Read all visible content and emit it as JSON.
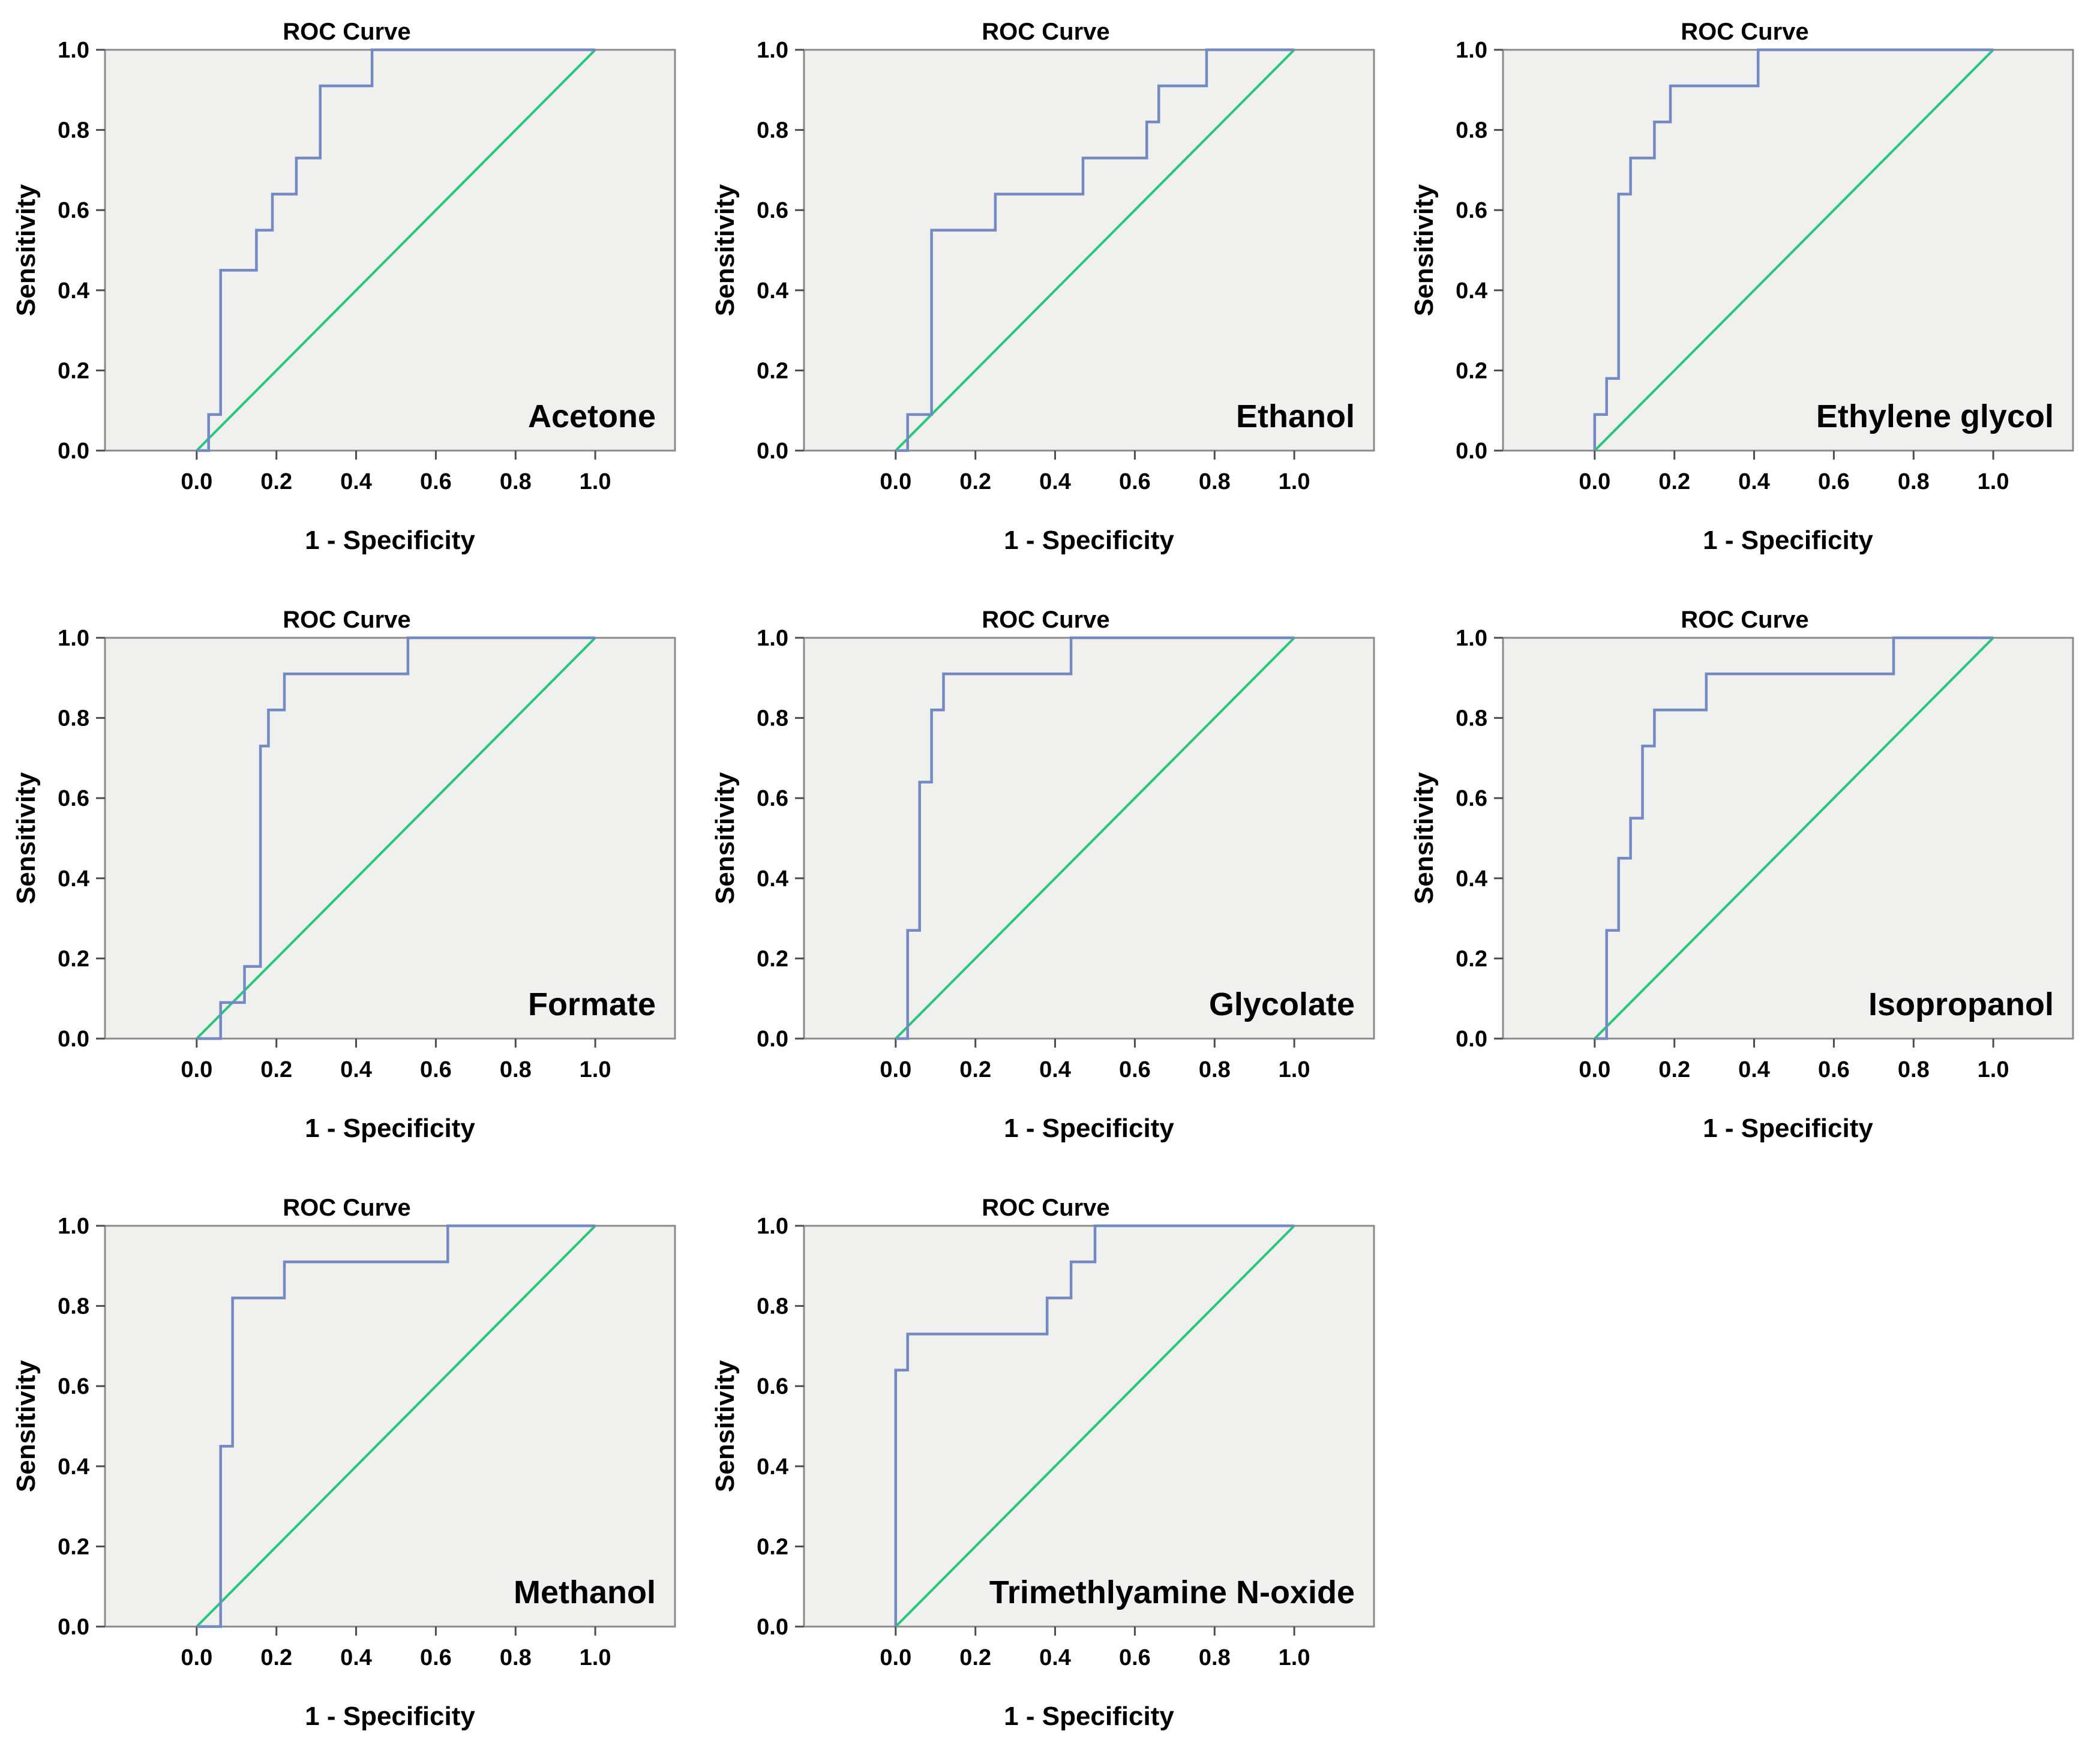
{
  "figure_style": {
    "background": "#ffffff",
    "plot_background": "#f0f0ef",
    "plot_border_color": "#8a8a8a",
    "axis_color": "#4d4d4d",
    "tick_label_color": "#000000",
    "roc_line_color": "#7289c4",
    "reference_line_color": "#25c87a",
    "grid": false,
    "legend": false
  },
  "chart_data": [
    {
      "type": "line",
      "title": "ROC Curve",
      "analyte_label": "Acetone",
      "xlabel": "1 - Specificity",
      "ylabel": "Sensitivity",
      "xlim": [
        0,
        1
      ],
      "ylim": [
        0,
        1
      ],
      "x_ticks": [
        "0.0",
        "0.2",
        "0.4",
        "0.6",
        "0.8",
        "1.0"
      ],
      "y_ticks": [
        "0.0",
        "0.2",
        "0.4",
        "0.6",
        "0.8",
        "1.0"
      ],
      "series": [
        {
          "name": "ROC curve",
          "color": "#7289c4",
          "points": [
            [
              0,
              0
            ],
            [
              0.03,
              0
            ],
            [
              0.03,
              0.09
            ],
            [
              0.06,
              0.09
            ],
            [
              0.06,
              0.45
            ],
            [
              0.15,
              0.45
            ],
            [
              0.15,
              0.55
            ],
            [
              0.19,
              0.55
            ],
            [
              0.19,
              0.64
            ],
            [
              0.25,
              0.64
            ],
            [
              0.25,
              0.73
            ],
            [
              0.31,
              0.73
            ],
            [
              0.31,
              0.91
            ],
            [
              0.44,
              0.91
            ],
            [
              0.44,
              1
            ],
            [
              1,
              1
            ]
          ]
        },
        {
          "name": "Reference line",
          "color": "#25c87a",
          "points": [
            [
              0,
              0
            ],
            [
              1,
              1
            ]
          ]
        }
      ]
    },
    {
      "type": "line",
      "title": "ROC Curve",
      "analyte_label": "Ethanol",
      "xlabel": "1 - Specificity",
      "ylabel": "Sensitivity",
      "xlim": [
        0,
        1
      ],
      "ylim": [
        0,
        1
      ],
      "x_ticks": [
        "0.0",
        "0.2",
        "0.4",
        "0.6",
        "0.8",
        "1.0"
      ],
      "y_ticks": [
        "0.0",
        "0.2",
        "0.4",
        "0.6",
        "0.8",
        "1.0"
      ],
      "series": [
        {
          "name": "ROC curve",
          "color": "#7289c4",
          "points": [
            [
              0,
              0
            ],
            [
              0.03,
              0
            ],
            [
              0.03,
              0.09
            ],
            [
              0.09,
              0.09
            ],
            [
              0.09,
              0.55
            ],
            [
              0.25,
              0.55
            ],
            [
              0.25,
              0.64
            ],
            [
              0.47,
              0.64
            ],
            [
              0.47,
              0.73
            ],
            [
              0.63,
              0.73
            ],
            [
              0.63,
              0.82
            ],
            [
              0.66,
              0.82
            ],
            [
              0.66,
              0.91
            ],
            [
              0.78,
              0.91
            ],
            [
              0.78,
              1
            ],
            [
              1,
              1
            ]
          ]
        },
        {
          "name": "Reference line",
          "color": "#25c87a",
          "points": [
            [
              0,
              0
            ],
            [
              1,
              1
            ]
          ]
        }
      ]
    },
    {
      "type": "line",
      "title": "ROC Curve",
      "analyte_label": "Ethylene glycol",
      "xlabel": "1 - Specificity",
      "ylabel": "Sensitivity",
      "xlim": [
        0,
        1
      ],
      "ylim": [
        0,
        1
      ],
      "x_ticks": [
        "0.0",
        "0.2",
        "0.4",
        "0.6",
        "0.8",
        "1.0"
      ],
      "y_ticks": [
        "0.0",
        "0.2",
        "0.4",
        "0.6",
        "0.8",
        "1.0"
      ],
      "series": [
        {
          "name": "ROC curve",
          "color": "#7289c4",
          "points": [
            [
              0,
              0
            ],
            [
              0,
              0.09
            ],
            [
              0.03,
              0.09
            ],
            [
              0.03,
              0.18
            ],
            [
              0.06,
              0.18
            ],
            [
              0.06,
              0.64
            ],
            [
              0.09,
              0.64
            ],
            [
              0.09,
              0.73
            ],
            [
              0.15,
              0.73
            ],
            [
              0.15,
              0.82
            ],
            [
              0.19,
              0.82
            ],
            [
              0.19,
              0.91
            ],
            [
              0.41,
              0.91
            ],
            [
              0.41,
              1
            ],
            [
              1,
              1
            ]
          ]
        },
        {
          "name": "Reference line",
          "color": "#25c87a",
          "points": [
            [
              0,
              0
            ],
            [
              1,
              1
            ]
          ]
        }
      ]
    },
    {
      "type": "line",
      "title": "ROC Curve",
      "analyte_label": "Formate",
      "xlabel": "1 - Specificity",
      "ylabel": "Sensitivity",
      "xlim": [
        0,
        1
      ],
      "ylim": [
        0,
        1
      ],
      "x_ticks": [
        "0.0",
        "0.2",
        "0.4",
        "0.6",
        "0.8",
        "1.0"
      ],
      "y_ticks": [
        "0.0",
        "0.2",
        "0.4",
        "0.6",
        "0.8",
        "1.0"
      ],
      "series": [
        {
          "name": "ROC curve",
          "color": "#7289c4",
          "points": [
            [
              0,
              0
            ],
            [
              0.06,
              0
            ],
            [
              0.06,
              0.09
            ],
            [
              0.12,
              0.09
            ],
            [
              0.12,
              0.18
            ],
            [
              0.16,
              0.18
            ],
            [
              0.16,
              0.73
            ],
            [
              0.18,
              0.73
            ],
            [
              0.18,
              0.82
            ],
            [
              0.22,
              0.82
            ],
            [
              0.22,
              0.91
            ],
            [
              0.53,
              0.91
            ],
            [
              0.53,
              1
            ],
            [
              1,
              1
            ]
          ]
        },
        {
          "name": "Reference line",
          "color": "#25c87a",
          "points": [
            [
              0,
              0
            ],
            [
              1,
              1
            ]
          ]
        }
      ]
    },
    {
      "type": "line",
      "title": "ROC Curve",
      "analyte_label": "Glycolate",
      "xlabel": "1 - Specificity",
      "ylabel": "Sensitivity",
      "xlim": [
        0,
        1
      ],
      "ylim": [
        0,
        1
      ],
      "x_ticks": [
        "0.0",
        "0.2",
        "0.4",
        "0.6",
        "0.8",
        "1.0"
      ],
      "y_ticks": [
        "0.0",
        "0.2",
        "0.4",
        "0.6",
        "0.8",
        "1.0"
      ],
      "series": [
        {
          "name": "ROC curve",
          "color": "#7289c4",
          "points": [
            [
              0,
              0
            ],
            [
              0.03,
              0
            ],
            [
              0.03,
              0.27
            ],
            [
              0.06,
              0.27
            ],
            [
              0.06,
              0.64
            ],
            [
              0.09,
              0.64
            ],
            [
              0.09,
              0.82
            ],
            [
              0.12,
              0.82
            ],
            [
              0.12,
              0.91
            ],
            [
              0.44,
              0.91
            ],
            [
              0.44,
              1
            ],
            [
              1,
              1
            ]
          ]
        },
        {
          "name": "Reference line",
          "color": "#25c87a",
          "points": [
            [
              0,
              0
            ],
            [
              1,
              1
            ]
          ]
        }
      ]
    },
    {
      "type": "line",
      "title": "ROC Curve",
      "analyte_label": "Isopropanol",
      "xlabel": "1 - Specificity",
      "ylabel": "Sensitivity",
      "xlim": [
        0,
        1
      ],
      "ylim": [
        0,
        1
      ],
      "x_ticks": [
        "0.0",
        "0.2",
        "0.4",
        "0.6",
        "0.8",
        "1.0"
      ],
      "y_ticks": [
        "0.0",
        "0.2",
        "0.4",
        "0.6",
        "0.8",
        "1.0"
      ],
      "series": [
        {
          "name": "ROC curve",
          "color": "#7289c4",
          "points": [
            [
              0,
              0
            ],
            [
              0.03,
              0
            ],
            [
              0.03,
              0.27
            ],
            [
              0.06,
              0.27
            ],
            [
              0.06,
              0.45
            ],
            [
              0.09,
              0.45
            ],
            [
              0.09,
              0.55
            ],
            [
              0.12,
              0.55
            ],
            [
              0.12,
              0.73
            ],
            [
              0.15,
              0.73
            ],
            [
              0.15,
              0.82
            ],
            [
              0.28,
              0.82
            ],
            [
              0.28,
              0.91
            ],
            [
              0.75,
              0.91
            ],
            [
              0.75,
              1
            ],
            [
              1,
              1
            ]
          ]
        },
        {
          "name": "Reference line",
          "color": "#25c87a",
          "points": [
            [
              0,
              0
            ],
            [
              1,
              1
            ]
          ]
        }
      ]
    },
    {
      "type": "line",
      "title": "ROC Curve",
      "analyte_label": "Methanol",
      "xlabel": "1 - Specificity",
      "ylabel": "Sensitivity",
      "xlim": [
        0,
        1
      ],
      "ylim": [
        0,
        1
      ],
      "x_ticks": [
        "0.0",
        "0.2",
        "0.4",
        "0.6",
        "0.8",
        "1.0"
      ],
      "y_ticks": [
        "0.0",
        "0.2",
        "0.4",
        "0.6",
        "0.8",
        "1.0"
      ],
      "series": [
        {
          "name": "ROC curve",
          "color": "#7289c4",
          "points": [
            [
              0,
              0
            ],
            [
              0.06,
              0
            ],
            [
              0.06,
              0.45
            ],
            [
              0.09,
              0.45
            ],
            [
              0.09,
              0.82
            ],
            [
              0.22,
              0.82
            ],
            [
              0.22,
              0.91
            ],
            [
              0.63,
              0.91
            ],
            [
              0.63,
              1
            ],
            [
              1,
              1
            ]
          ]
        },
        {
          "name": "Reference line",
          "color": "#25c87a",
          "points": [
            [
              0,
              0
            ],
            [
              1,
              1
            ]
          ]
        }
      ]
    },
    {
      "type": "line",
      "title": "ROC Curve",
      "analyte_label": "Trimethlyamine N-oxide",
      "xlabel": "1 - Specificity",
      "ylabel": "Sensitivity",
      "xlim": [
        0,
        1
      ],
      "ylim": [
        0,
        1
      ],
      "x_ticks": [
        "0.0",
        "0.2",
        "0.4",
        "0.6",
        "0.8",
        "1.0"
      ],
      "y_ticks": [
        "0.0",
        "0.2",
        "0.4",
        "0.6",
        "0.8",
        "1.0"
      ],
      "series": [
        {
          "name": "ROC curve",
          "color": "#7289c4",
          "points": [
            [
              0,
              0
            ],
            [
              0,
              0.64
            ],
            [
              0.03,
              0.64
            ],
            [
              0.03,
              0.73
            ],
            [
              0.38,
              0.73
            ],
            [
              0.38,
              0.82
            ],
            [
              0.44,
              0.82
            ],
            [
              0.44,
              0.91
            ],
            [
              0.5,
              0.91
            ],
            [
              0.5,
              1
            ],
            [
              1,
              1
            ]
          ]
        },
        {
          "name": "Reference line",
          "color": "#25c87a",
          "points": [
            [
              0,
              0
            ],
            [
              1,
              1
            ]
          ]
        }
      ]
    }
  ]
}
